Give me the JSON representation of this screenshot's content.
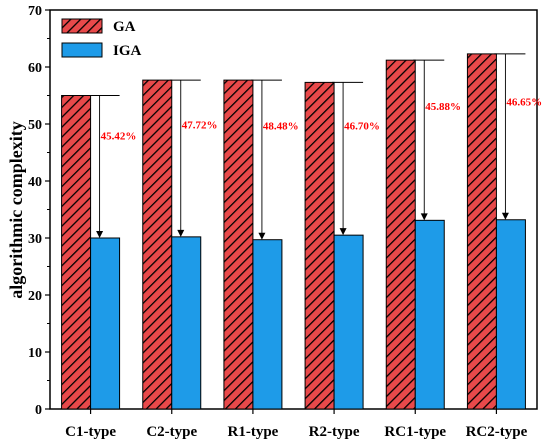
{
  "chart_data": {
    "type": "bar",
    "title": "",
    "xlabel": "",
    "ylabel": "algorithmic complexity",
    "ylim": [
      0,
      70
    ],
    "yticks": [
      0,
      10,
      20,
      30,
      40,
      50,
      60,
      70
    ],
    "categories": [
      "C1-type",
      "C2-type",
      "R1-type",
      "R2-type",
      "RC1-type",
      "RC2-type"
    ],
    "series": [
      {
        "name": "GA",
        "values": [
          55.0,
          57.7,
          57.7,
          57.3,
          61.2,
          62.3
        ],
        "color": "#e8494a",
        "pattern": "diagonal-hatch"
      },
      {
        "name": "IGA",
        "values": [
          30.0,
          30.2,
          29.7,
          30.5,
          33.1,
          33.2
        ],
        "color": "#1e9be8",
        "pattern": "solid"
      }
    ],
    "annotations": [
      "45.42%",
      "47.72%",
      "48.48%",
      "46.70%",
      "45.88%",
      "46.65%"
    ],
    "annotation_color": "#ff0000",
    "legend_position": "top-left",
    "grid": false
  }
}
